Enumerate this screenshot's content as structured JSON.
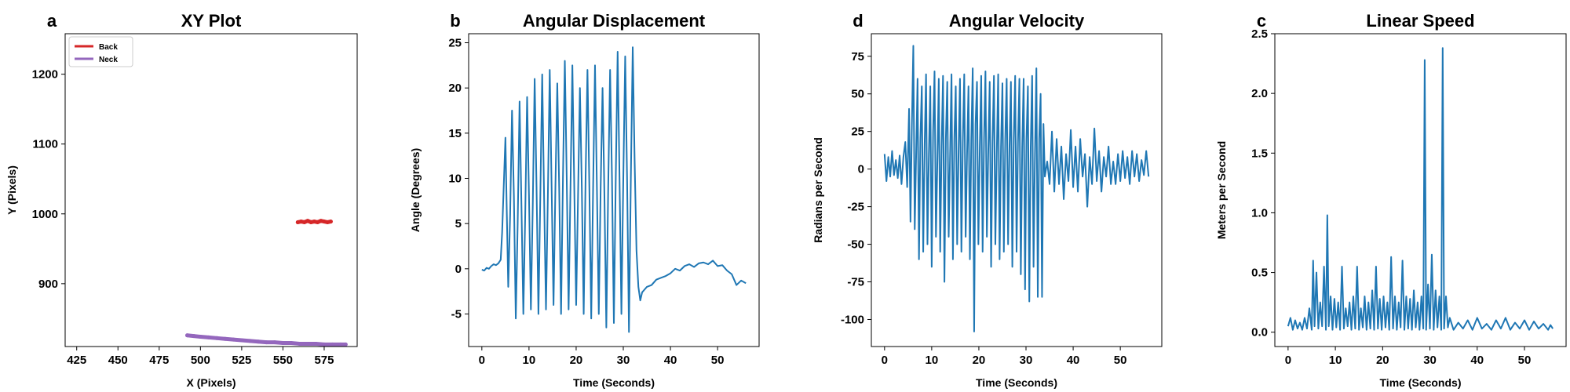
{
  "chart_data": [
    {
      "panel": "a",
      "type": "scatter",
      "title": "XY Plot",
      "xlabel": "X (Pixels)",
      "ylabel": "Y (Pixels)",
      "xlim": [
        418,
        595
      ],
      "ylim": [
        810,
        1258
      ],
      "xticks": [
        425,
        450,
        475,
        500,
        525,
        550,
        575
      ],
      "yticks": [
        900,
        1000,
        1100,
        1200
      ],
      "grid": false,
      "legend": "top-left",
      "series": [
        {
          "name": "Back",
          "color": "#d62728",
          "x": [
            559,
            561,
            563,
            565,
            567,
            569,
            571,
            573,
            575,
            577,
            579
          ],
          "y": [
            988,
            989,
            988,
            990,
            988,
            989,
            988,
            990,
            989,
            988,
            989
          ]
        },
        {
          "name": "Neck",
          "color": "#9467bd",
          "x": [
            492,
            496,
            500,
            505,
            510,
            515,
            520,
            525,
            530,
            535,
            540,
            545,
            550,
            555,
            560,
            565,
            570,
            575,
            580,
            585,
            588
          ],
          "y": [
            826,
            825,
            824,
            823,
            822,
            821,
            820,
            819,
            818,
            817,
            816,
            816,
            815,
            815,
            814,
            814,
            814,
            813,
            813,
            813,
            813
          ]
        }
      ]
    },
    {
      "panel": "b",
      "type": "line",
      "title": "Angular Displacement",
      "xlabel": "Time (Seconds)",
      "ylabel": "Angle (Degrees)",
      "xlim": [
        -2.8,
        58.8
      ],
      "ylim": [
        -8.6,
        26.0
      ],
      "xticks": [
        0,
        10,
        20,
        30,
        40,
        50
      ],
      "yticks": [
        -5,
        0,
        5,
        10,
        15,
        20,
        25
      ],
      "grid": false,
      "color": "#1f77b4",
      "x": [
        0,
        0.5,
        1,
        1.5,
        2,
        2.5,
        3,
        3.5,
        4,
        4.3,
        4.7,
        5.0,
        5.3,
        5.6,
        6.0,
        6.4,
        6.8,
        7.2,
        7.6,
        8.0,
        8.4,
        8.8,
        9.2,
        9.6,
        10.0,
        10.4,
        10.8,
        11.2,
        11.6,
        12.0,
        12.4,
        12.8,
        13.2,
        13.6,
        14.0,
        14.4,
        14.8,
        15.2,
        15.6,
        16.0,
        16.4,
        16.8,
        17.2,
        17.6,
        18.0,
        18.4,
        18.8,
        19.2,
        19.6,
        20.0,
        20.4,
        20.8,
        21.2,
        21.6,
        22.0,
        22.4,
        22.8,
        23.2,
        23.6,
        24.0,
        24.4,
        24.8,
        25.2,
        25.6,
        26.0,
        26.4,
        26.8,
        27.2,
        27.6,
        28.0,
        28.4,
        28.8,
        29.2,
        29.6,
        30.0,
        30.4,
        30.8,
        31.2,
        31.6,
        32.0,
        32.4,
        32.8,
        33.2,
        33.6,
        34.0,
        34.5,
        35.0,
        36,
        37,
        38,
        39,
        40,
        41,
        42,
        43,
        44,
        45,
        46,
        47,
        48,
        49,
        50,
        51,
        52,
        53,
        54,
        55,
        56
      ],
      "y": [
        -0.1,
        -0.2,
        0.1,
        0.0,
        0.3,
        0.5,
        0.4,
        0.6,
        1.0,
        4.0,
        10.0,
        14.5,
        6.0,
        -2.0,
        6.0,
        17.5,
        8.0,
        -5.5,
        5.0,
        18.5,
        7.0,
        -5.0,
        6.0,
        19.0,
        8.0,
        -4.5,
        7.0,
        21.0,
        9.0,
        -5.0,
        8.0,
        21.5,
        8.0,
        -4.5,
        8.0,
        22.0,
        9.0,
        -4.0,
        9.0,
        20.5,
        9.0,
        -5.0,
        10.0,
        23.0,
        10.0,
        -4.5,
        9.0,
        22.5,
        9.0,
        -4.0,
        8.0,
        20.0,
        9.0,
        -5.0,
        10.0,
        22.0,
        9.0,
        -5.5,
        9.0,
        22.5,
        9.0,
        -5.0,
        9.0,
        20.0,
        8.0,
        -6.5,
        9.0,
        22.0,
        10.0,
        -6.0,
        10.0,
        24.0,
        10.0,
        -5.0,
        10.0,
        23.5,
        10.0,
        -7.0,
        10.0,
        24.5,
        12.0,
        2.0,
        -2.0,
        -3.5,
        -2.6,
        -2.3,
        -2.0,
        -1.8,
        -1.2,
        -1.0,
        -0.8,
        -0.5,
        0.0,
        -0.2,
        0.3,
        0.5,
        0.2,
        0.6,
        0.7,
        0.5,
        0.9,
        0.3,
        0.4,
        -0.2,
        -0.6,
        -1.8,
        -1.3,
        -1.6
      ]
    },
    {
      "panel": "d",
      "type": "line",
      "title": "Angular Velocity",
      "xlabel": "Time (Seconds)",
      "ylabel": "Radians per Second",
      "xlim": [
        -2.8,
        58.8
      ],
      "ylim": [
        -118,
        90
      ],
      "xticks": [
        0,
        10,
        20,
        30,
        40,
        50
      ],
      "yticks": [
        -100,
        -75,
        -50,
        -25,
        0,
        25,
        50,
        75
      ],
      "grid": false,
      "color": "#1f77b4",
      "x": [
        0,
        0.4,
        0.8,
        1.2,
        1.6,
        2.0,
        2.4,
        2.8,
        3.2,
        3.6,
        4.0,
        4.4,
        4.8,
        5.2,
        5.5,
        5.8,
        6.1,
        6.4,
        6.7,
        7.0,
        7.3,
        7.6,
        7.9,
        8.2,
        8.5,
        8.8,
        9.1,
        9.4,
        9.7,
        10.0,
        10.3,
        10.6,
        10.9,
        11.2,
        11.5,
        11.8,
        12.1,
        12.4,
        12.7,
        13.0,
        13.3,
        13.6,
        13.9,
        14.2,
        14.5,
        14.8,
        15.1,
        15.4,
        15.7,
        16.0,
        16.3,
        16.6,
        16.9,
        17.2,
        17.5,
        17.8,
        18.1,
        18.4,
        18.7,
        19.0,
        19.3,
        19.6,
        19.9,
        20.2,
        20.5,
        20.8,
        21.1,
        21.4,
        21.7,
        22.0,
        22.3,
        22.6,
        22.9,
        23.2,
        23.5,
        23.8,
        24.1,
        24.4,
        24.7,
        25.0,
        25.3,
        25.6,
        25.9,
        26.2,
        26.5,
        26.8,
        27.1,
        27.4,
        27.7,
        28.0,
        28.3,
        28.6,
        28.9,
        29.2,
        29.5,
        29.8,
        30.1,
        30.4,
        30.7,
        31.0,
        31.3,
        31.6,
        31.9,
        32.2,
        32.5,
        32.8,
        33.1,
        33.4,
        33.7,
        34.0,
        34.5,
        35.0,
        35.5,
        36.0,
        36.5,
        37.0,
        37.5,
        38.0,
        38.5,
        39.0,
        39.5,
        40.0,
        40.5,
        41.0,
        41.5,
        42.0,
        42.5,
        43.0,
        43.5,
        44.0,
        44.5,
        45.0,
        45.5,
        46.0,
        46.5,
        47.0,
        47.5,
        48.0,
        48.5,
        49.0,
        49.5,
        50.0,
        50.5,
        51.0,
        51.5,
        52.0,
        52.5,
        53.0,
        53.5,
        54.0,
        54.5,
        55.0,
        55.5,
        56.0
      ],
      "y": [
        10,
        -8,
        8,
        -5,
        12,
        -4,
        6,
        -6,
        9,
        -10,
        8,
        18,
        -12,
        40,
        -35,
        30,
        82,
        -40,
        10,
        60,
        -60,
        20,
        55,
        -55,
        15,
        63,
        -50,
        10,
        55,
        -65,
        25,
        65,
        -45,
        5,
        60,
        -55,
        15,
        62,
        -75,
        20,
        58,
        -45,
        10,
        63,
        -60,
        20,
        55,
        -50,
        12,
        60,
        -55,
        18,
        63,
        -45,
        10,
        55,
        -60,
        20,
        67,
        -108,
        30,
        58,
        -50,
        15,
        62,
        -55,
        20,
        65,
        -45,
        12,
        58,
        -65,
        18,
        62,
        -50,
        10,
        63,
        -60,
        15,
        57,
        -55,
        20,
        60,
        -50,
        15,
        58,
        -65,
        20,
        62,
        -55,
        18,
        60,
        -70,
        15,
        60,
        -80,
        20,
        55,
        -88,
        15,
        62,
        -65,
        10,
        67,
        -85,
        20,
        50,
        -85,
        30,
        -5,
        5,
        -10,
        25,
        -15,
        20,
        -10,
        15,
        -20,
        10,
        -8,
        26,
        -12,
        15,
        -15,
        20,
        -5,
        10,
        -25,
        8,
        -10,
        27,
        -8,
        12,
        -15,
        8,
        -5,
        15,
        -10,
        5,
        -10,
        10,
        -8,
        12,
        -6,
        8,
        -10,
        12,
        -5,
        10,
        -8,
        6,
        -4,
        12,
        -5
      ]
    },
    {
      "panel": "c",
      "type": "line",
      "title": "Linear Speed",
      "xlabel": "Time (Seconds)",
      "ylabel": "Meters per Second",
      "xlim": [
        -2.8,
        58.8
      ],
      "ylim": [
        -0.12,
        2.5
      ],
      "xticks": [
        0,
        10,
        20,
        30,
        40,
        50
      ],
      "yticks": [
        0.0,
        0.5,
        1.0,
        1.5,
        2.0,
        2.5
      ],
      "grid": false,
      "color": "#1f77b4",
      "x": [
        0,
        0.5,
        1.0,
        1.5,
        2.0,
        2.5,
        3.0,
        3.5,
        4.0,
        4.5,
        5.0,
        5.3,
        5.6,
        6.0,
        6.4,
        6.8,
        7.2,
        7.6,
        8.0,
        8.3,
        8.6,
        9.0,
        9.4,
        9.8,
        10.2,
        10.6,
        11.0,
        11.4,
        11.8,
        12.2,
        12.6,
        13.0,
        13.4,
        13.8,
        14.2,
        14.6,
        15.0,
        15.4,
        15.8,
        16.2,
        16.6,
        17.0,
        17.4,
        17.8,
        18.2,
        18.6,
        19.0,
        19.4,
        19.8,
        20.2,
        20.6,
        21.0,
        21.4,
        21.8,
        22.2,
        22.6,
        23.0,
        23.4,
        23.8,
        24.2,
        24.6,
        25.0,
        25.4,
        25.8,
        26.2,
        26.6,
        27.0,
        27.4,
        27.8,
        28.2,
        28.6,
        28.9,
        29.2,
        29.6,
        30.0,
        30.4,
        30.8,
        31.2,
        31.6,
        32.0,
        32.4,
        32.7,
        33.0,
        33.4,
        33.8,
        34.2,
        35.0,
        36,
        37,
        38,
        39,
        40,
        41,
        42,
        43,
        44,
        45,
        46,
        47,
        48,
        49,
        50,
        51,
        52,
        53,
        54,
        55,
        55.5,
        56
      ],
      "y": [
        0.05,
        0.12,
        0.02,
        0.1,
        0.03,
        0.08,
        0.02,
        0.12,
        0.03,
        0.2,
        0.02,
        0.6,
        0.05,
        0.5,
        0.03,
        0.25,
        0.05,
        0.55,
        0.02,
        0.98,
        0.05,
        0.3,
        0.02,
        0.28,
        0.04,
        0.25,
        0.02,
        0.55,
        0.03,
        0.2,
        0.05,
        0.25,
        0.02,
        0.3,
        0.03,
        0.55,
        0.02,
        0.2,
        0.04,
        0.3,
        0.02,
        0.25,
        0.03,
        0.35,
        0.02,
        0.55,
        0.03,
        0.28,
        0.02,
        0.3,
        0.04,
        0.25,
        0.02,
        0.63,
        0.03,
        0.3,
        0.02,
        0.25,
        0.04,
        0.6,
        0.02,
        0.3,
        0.03,
        0.28,
        0.02,
        0.35,
        0.04,
        0.25,
        0.02,
        0.3,
        0.03,
        2.28,
        0.02,
        0.4,
        0.03,
        0.65,
        0.02,
        0.35,
        0.04,
        0.3,
        0.02,
        2.38,
        0.03,
        0.3,
        0.04,
        0.12,
        0.02,
        0.08,
        0.03,
        0.1,
        0.02,
        0.12,
        0.03,
        0.07,
        0.02,
        0.1,
        0.03,
        0.12,
        0.02,
        0.08,
        0.03,
        0.1,
        0.02,
        0.09,
        0.03,
        0.07,
        0.02,
        0.06,
        0.03
      ]
    }
  ]
}
